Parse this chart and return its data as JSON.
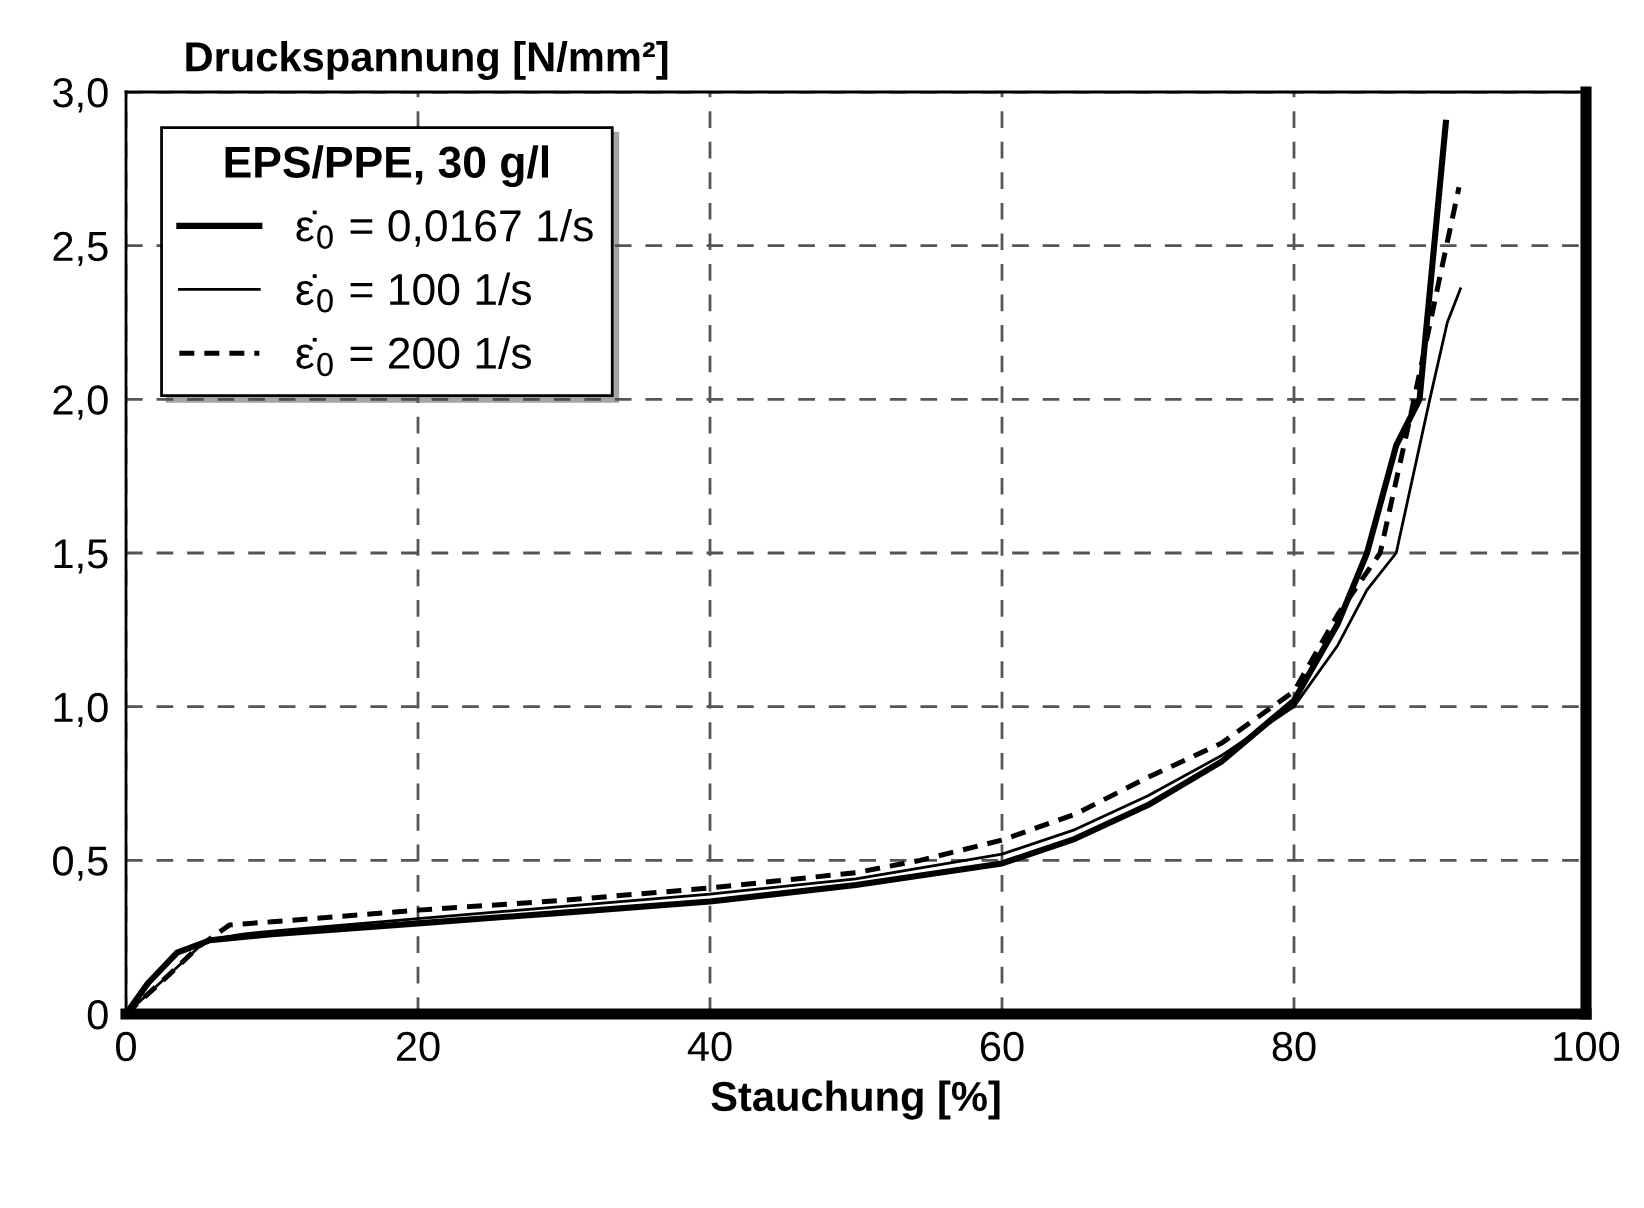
{
  "chart_data": {
    "type": "line",
    "ylabel": "Druckspannung [N/mm²]",
    "xlabel": "Stauchung [%]",
    "legend_title": "EPS/PPE, 30 g/l",
    "legend": "top left",
    "grid": true,
    "xlim": [
      0,
      100
    ],
    "ylim": [
      0,
      3.0
    ],
    "xticks": [
      0,
      20,
      40,
      60,
      80,
      100
    ],
    "yticks": [
      0,
      {
        "value": 0.5,
        "label": "0,5"
      },
      {
        "value": 1.0,
        "label": "1,0"
      },
      {
        "value": 1.5,
        "label": "1,5"
      },
      {
        "value": 2.0,
        "label": "2,0"
      },
      {
        "value": 2.5,
        "label": "2,5"
      },
      {
        "value": 3.0,
        "label": "3,0"
      }
    ],
    "series": [
      {
        "name": "ε̇$_{0}$ = 0,0167 1/s",
        "color": "#000000",
        "line_style": "solid",
        "x": [
          0,
          1.5,
          3.5,
          5.75,
          10,
          20,
          30,
          40,
          50,
          60,
          65,
          70,
          75,
          80,
          83,
          85,
          87,
          88.6,
          89.5,
          90.4
        ],
        "values": [
          0,
          0.1,
          0.2,
          0.24,
          0.26,
          0.295,
          0.33,
          0.366,
          0.42,
          0.49,
          0.57,
          0.68,
          0.82,
          1.02,
          1.27,
          1.5,
          1.85,
          2.0,
          2.45,
          2.9
        ]
      },
      {
        "name": "ε̇$_{0}$ = 100 1/s",
        "color": "#000000",
        "line_style": "solid",
        "x": [
          0,
          3,
          5.5,
          8,
          10,
          20,
          30,
          40,
          50,
          60,
          65,
          70,
          75,
          80,
          83,
          85,
          87,
          89.3,
          90.5,
          91.4
        ],
        "values": [
          0,
          0.13,
          0.24,
          0.26,
          0.27,
          0.31,
          0.35,
          0.39,
          0.44,
          0.52,
          0.6,
          0.71,
          0.84,
          1.0,
          1.2,
          1.38,
          1.5,
          2.0,
          2.25,
          2.36
        ]
      },
      {
        "name": "ε̇$_{0}$ = 200 1/s",
        "color": "#000000",
        "line_style": "dashed",
        "x": [
          0,
          3,
          5,
          7.1,
          10,
          20,
          30,
          40,
          50,
          54.4,
          60,
          65,
          70,
          75,
          80,
          83,
          85.9,
          88,
          90,
          91.3
        ],
        "values": [
          0,
          0.13,
          0.22,
          0.29,
          0.3,
          0.338,
          0.37,
          0.41,
          0.46,
          0.5,
          0.566,
          0.65,
          0.77,
          0.88,
          1.05,
          1.3,
          1.5,
          1.95,
          2.4,
          2.69
        ]
      }
    ]
  }
}
